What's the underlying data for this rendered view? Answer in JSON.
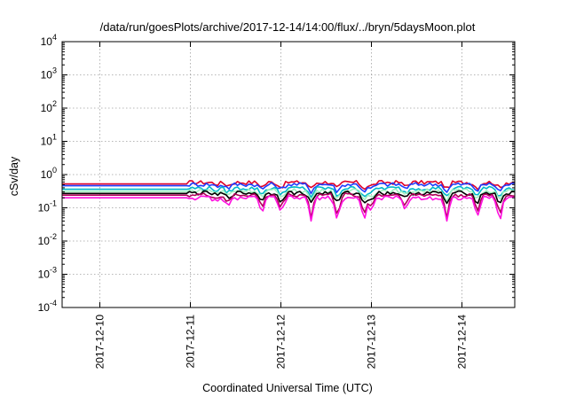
{
  "chart_data": {
    "type": "line",
    "title": "/data/run/goesPlots/archive/2017-12-14/14:00/flux/../bryn/5daysMoon.plot",
    "xlabel": "Coordinated Universal Time (UTC)",
    "ylabel": "cSv/day",
    "yscale": "log",
    "ylim": [
      0.0001,
      10000
    ],
    "y_ticks": [
      {
        "value": 0.0001,
        "base": "10",
        "exp": "-4"
      },
      {
        "value": 0.001,
        "base": "10",
        "exp": "-3"
      },
      {
        "value": 0.01,
        "base": "10",
        "exp": "-2"
      },
      {
        "value": 0.1,
        "base": "10",
        "exp": "-1"
      },
      {
        "value": 1,
        "base": "10",
        "exp": "0"
      },
      {
        "value": 10,
        "base": "10",
        "exp": "1"
      },
      {
        "value": 100,
        "base": "10",
        "exp": "2"
      },
      {
        "value": 1000,
        "base": "10",
        "exp": "3"
      },
      {
        "value": 10000,
        "base": "10",
        "exp": "4"
      }
    ],
    "xlim": [
      "2017-12-09T14:00",
      "2017-12-14T14:00"
    ],
    "x_ticks": [
      "2017-12-10",
      "2017-12-11",
      "2017-12-12",
      "2017-12-13",
      "2017-12-14"
    ],
    "grid": true,
    "series": [
      {
        "color": "#e0002a",
        "base": 0.52,
        "flat_until": "2017-12-10T23:00"
      },
      {
        "color": "#1f3cff",
        "base": 0.46,
        "flat_until": "2017-12-10T23:00"
      },
      {
        "color": "#00b8c8",
        "base": 0.36,
        "flat_until": "2017-12-10T23:00"
      },
      {
        "color": "#a0f0c0",
        "base": 0.31,
        "flat_until": "2017-12-10T23:00"
      },
      {
        "color": "#000000",
        "base": 0.27,
        "flat_until": "2017-12-10T23:00"
      },
      {
        "color": "#b0005a",
        "base": 0.24,
        "flat_until": "2017-12-10T23:00"
      },
      {
        "color": "#ff10e0",
        "base": 0.2,
        "flat_until": "2017-12-10T23:00"
      }
    ],
    "dips": [
      {
        "time": "2017-12-11T07:00",
        "depth": 0.25
      },
      {
        "time": "2017-12-11T10:00",
        "depth": 0.45
      },
      {
        "time": "2017-12-11T19:00",
        "depth": 0.6
      },
      {
        "time": "2017-12-12T00:00",
        "depth": 0.65
      },
      {
        "time": "2017-12-12T08:00",
        "depth": 0.75
      },
      {
        "time": "2017-12-12T15:00",
        "depth": 0.8
      },
      {
        "time": "2017-12-12T22:00",
        "depth": 0.8
      },
      {
        "time": "2017-12-13T00:00",
        "depth": 0.55
      },
      {
        "time": "2017-12-13T09:00",
        "depth": 0.5
      },
      {
        "time": "2017-12-13T20:00",
        "depth": 0.78
      },
      {
        "time": "2017-12-14T04:00",
        "depth": 0.75
      },
      {
        "time": "2017-12-14T10:00",
        "depth": 0.8
      }
    ]
  }
}
